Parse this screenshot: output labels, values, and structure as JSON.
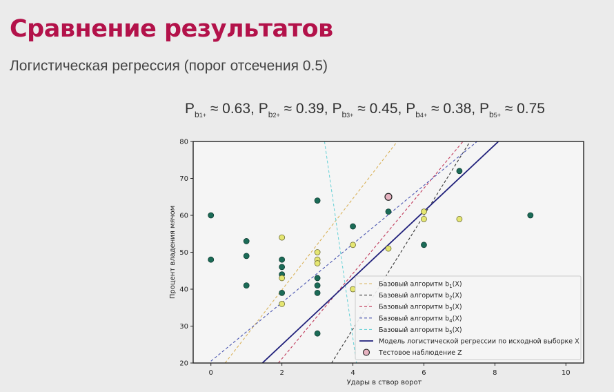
{
  "slide": {
    "title": "Сравнение результатов",
    "subtitle": "Логистическая регрессия (порог отсечения 0.5)"
  },
  "formula": {
    "terms": [
      {
        "base": "P",
        "sub": "b",
        "sub2": "1+",
        "value": "≈ 0.63",
        "sep": ","
      },
      {
        "base": "P",
        "sub": "b",
        "sub2": "2+",
        "value": "≈ 0.39",
        "sep": ","
      },
      {
        "base": "P",
        "sub": "b",
        "sub2": "3+",
        "value": "≈ 0.45",
        "sep": ","
      },
      {
        "base": "P",
        "sub": "b",
        "sub2": "4+",
        "value": "≈ 0.38",
        "sep": ","
      },
      {
        "base": "P",
        "sub": "b",
        "sub2": "5+",
        "value": "≈ 0.75",
        "sep": ""
      }
    ]
  },
  "chart_data": {
    "type": "scatter",
    "title": "",
    "xlabel": "Удары в створ ворот",
    "ylabel": "Процент владения мячом",
    "xlim": [
      -0.5,
      10.5
    ],
    "ylim": [
      20,
      80
    ],
    "xticks": [
      0,
      2,
      4,
      6,
      8,
      10
    ],
    "yticks": [
      20,
      30,
      40,
      50,
      60,
      70,
      80
    ],
    "grid": false,
    "legend_position": "bottom-right",
    "colors": {
      "dark_class": "#1b6b57",
      "light_class": "#e5e672",
      "test_point": "#e6b2c0",
      "b1": "#d9b25a",
      "b2": "#333333",
      "b3": "#c0395a",
      "b4": "#4a55b0",
      "b5": "#6fd3d8",
      "logreg": "#1f1f7a"
    },
    "points_dark": [
      [
        0,
        60
      ],
      [
        0,
        48
      ],
      [
        1,
        53
      ],
      [
        1,
        49
      ],
      [
        1,
        41
      ],
      [
        2,
        48
      ],
      [
        2,
        46
      ],
      [
        2,
        44
      ],
      [
        2,
        39
      ],
      [
        3,
        64
      ],
      [
        3,
        43
      ],
      [
        3,
        41
      ],
      [
        3,
        39
      ],
      [
        3,
        28
      ],
      [
        4,
        57
      ],
      [
        5,
        61
      ],
      [
        6,
        52
      ],
      [
        7,
        72
      ],
      [
        9,
        60
      ]
    ],
    "points_light": [
      [
        2,
        54
      ],
      [
        2,
        43
      ],
      [
        2,
        36
      ],
      [
        3,
        50
      ],
      [
        3,
        48
      ],
      [
        3,
        47
      ],
      [
        4,
        52
      ],
      [
        4,
        40
      ],
      [
        5,
        51
      ],
      [
        6,
        61
      ],
      [
        6,
        59
      ],
      [
        7,
        59
      ]
    ],
    "test_point": [
      5,
      65
    ],
    "lines": [
      {
        "id": "b1",
        "label": "Базовый алгоритм b",
        "sub": "1",
        "suffix": "(X)",
        "style": "dashed",
        "points": [
          [
            0.4,
            20
          ],
          [
            5.25,
            80
          ]
        ]
      },
      {
        "id": "b2",
        "label": "Базовый алгоритм b",
        "sub": "2",
        "suffix": "(X)",
        "style": "dashed",
        "points": [
          [
            3.4,
            20
          ],
          [
            7.3,
            80
          ]
        ]
      },
      {
        "id": "b3",
        "label": "Базовый алгоритм b",
        "sub": "3",
        "suffix": "(X)",
        "style": "dashed",
        "points": [
          [
            1.9,
            20
          ],
          [
            7.1,
            80
          ]
        ]
      },
      {
        "id": "b4",
        "label": "Базовый алгоритм b",
        "sub": "4",
        "suffix": "(X)",
        "style": "dashed",
        "points": [
          [
            0,
            20.5
          ],
          [
            7.5,
            80
          ]
        ]
      },
      {
        "id": "b5",
        "label": "Базовый алгоритм b",
        "sub": "5",
        "suffix": "(X)",
        "style": "dashed",
        "points": [
          [
            3.2,
            80
          ],
          [
            4.1,
            20
          ]
        ]
      },
      {
        "id": "logreg",
        "label": "Модель логистической регрессии по исходной выборке X",
        "sub": "",
        "suffix": "",
        "style": "solid",
        "points": [
          [
            1.45,
            20
          ],
          [
            8.1,
            80
          ]
        ]
      }
    ],
    "test_label": "Тестовое наблюдение Z"
  }
}
